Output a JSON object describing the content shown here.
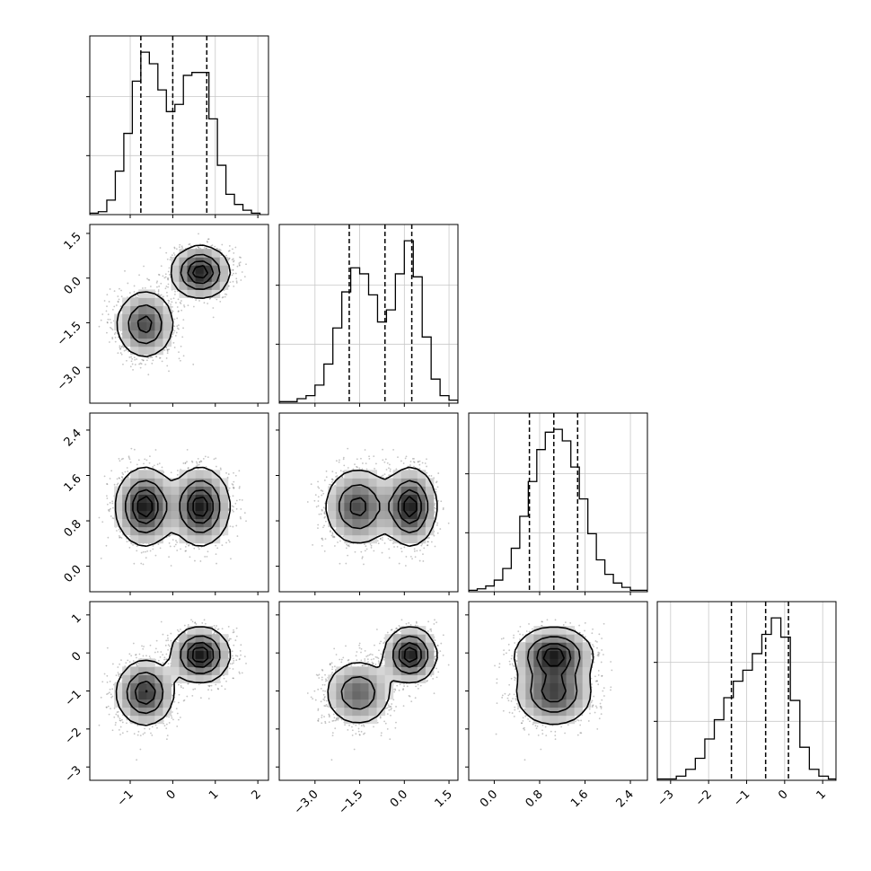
{
  "figure": {
    "type": "corner-plot",
    "grid": true
  },
  "chart_data": {
    "type": "corner",
    "n_params": 4,
    "labels": [
      "",
      "",
      "",
      ""
    ],
    "ranges": [
      [
        -1.95,
        2.25
      ],
      [
        -4.2,
        1.8
      ],
      [
        -0.45,
        2.7
      ],
      [
        -3.35,
        1.35
      ]
    ],
    "ticks": [
      {
        "values": [
          -1,
          0,
          1,
          2
        ],
        "labels": [
          "−1",
          "0",
          "1",
          "2"
        ]
      },
      {
        "values": [
          -3.0,
          -1.5,
          0.0,
          1.5
        ],
        "labels": [
          "−3.0",
          "−1.5",
          "0.0",
          "1.5"
        ]
      },
      {
        "values": [
          0.0,
          0.8,
          1.6,
          2.4
        ],
        "labels": [
          "0.0",
          "0.8",
          "1.6",
          "2.4"
        ]
      },
      {
        "values": [
          -3,
          -2,
          -1,
          0,
          1
        ],
        "labels": [
          "−3",
          "−2",
          "−1",
          "0",
          "1"
        ]
      }
    ],
    "quantiles": [
      [
        -0.75,
        0.0,
        0.8
      ],
      [
        -1.85,
        -0.65,
        0.25
      ],
      [
        0.62,
        1.05,
        1.47
      ],
      [
        -1.4,
        -0.5,
        0.1
      ]
    ],
    "histograms": [
      {
        "bins": [
          -1.95,
          -1.75,
          -1.55,
          -1.35,
          -1.15,
          -0.95,
          -0.75,
          -0.55,
          -0.35,
          -0.15,
          0.05,
          0.25,
          0.45,
          0.65,
          0.85,
          1.05,
          1.25,
          1.45,
          1.65,
          1.85,
          2.05
        ],
        "counts": [
          1,
          2,
          10,
          30,
          56,
          92,
          112,
          104,
          86,
          71,
          76,
          96,
          98,
          98,
          66,
          34,
          14,
          7,
          3,
          1
        ]
      },
      {
        "bins": [
          -4.2,
          -3.9,
          -3.6,
          -3.3,
          -3.0,
          -2.7,
          -2.4,
          -2.1,
          -1.8,
          -1.5,
          -1.2,
          -0.9,
          -0.6,
          -0.3,
          0.0,
          0.3,
          0.6,
          0.9,
          1.2,
          1.5,
          1.8
        ],
        "counts": [
          1,
          1,
          3,
          5,
          12,
          26,
          50,
          74,
          90,
          86,
          72,
          54,
          62,
          86,
          108,
          84,
          44,
          16,
          5,
          2
        ]
      },
      {
        "bins": [
          -0.45,
          -0.3,
          -0.15,
          0.0,
          0.15,
          0.3,
          0.45,
          0.6,
          0.75,
          0.9,
          1.05,
          1.2,
          1.35,
          1.5,
          1.65,
          1.8,
          1.95,
          2.1,
          2.25,
          2.4,
          2.55,
          2.7
        ],
        "counts": [
          1,
          2,
          4,
          8,
          16,
          30,
          52,
          76,
          98,
          110,
          112,
          104,
          86,
          64,
          40,
          22,
          12,
          6,
          3,
          1,
          1
        ]
      },
      {
        "bins": [
          -3.35,
          -3.1,
          -2.85,
          -2.6,
          -2.35,
          -2.1,
          -1.85,
          -1.6,
          -1.35,
          -1.1,
          -0.85,
          -0.6,
          -0.35,
          -0.1,
          0.15,
          0.4,
          0.65,
          0.9,
          1.15,
          1.35
        ],
        "counts": [
          1,
          1,
          3,
          8,
          16,
          30,
          44,
          60,
          72,
          80,
          92,
          106,
          118,
          104,
          58,
          24,
          8,
          3,
          1
        ]
      }
    ],
    "mixture": {
      "weights": [
        0.5,
        0.5
      ],
      "means": [
        [
          -0.65,
          -1.55,
          1.05,
          -1.05
        ],
        [
          0.65,
          0.2,
          1.05,
          -0.05
        ]
      ],
      "sds": [
        [
          0.33,
          0.55,
          0.33,
          0.42
        ],
        [
          0.33,
          0.42,
          0.33,
          0.35
        ]
      ]
    },
    "contour_levels": [
      0.118,
      0.393,
      0.675,
      0.865
    ]
  }
}
